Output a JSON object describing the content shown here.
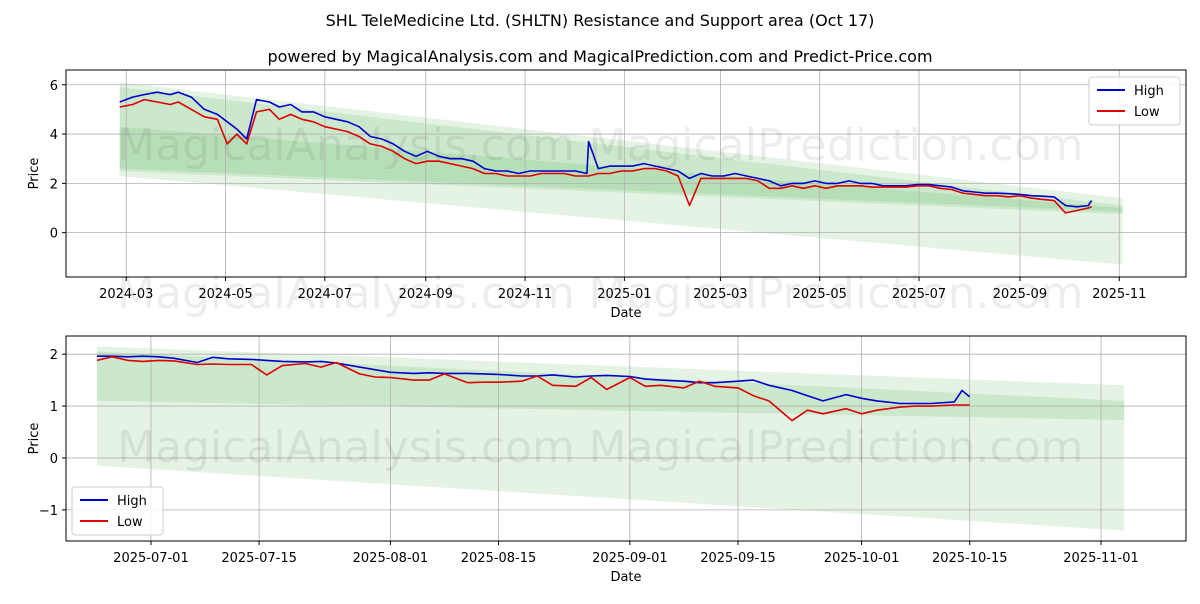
{
  "title": "SHL TeleMedicine Ltd. (SHLTN) Resistance and Support area (Oct 17)",
  "subtitle": "powered by MagicalAnalysis.com and MagicalPrediction.com and Predict-Price.com",
  "watermarks": [
    "MagicalAnalysis.com",
    "MagicalPrediction.com"
  ],
  "colors": {
    "high": "#0000cc",
    "low": "#dd0000",
    "band": "#2ca02c",
    "grid": "#b0b0b0"
  },
  "chart_data": [
    {
      "type": "line",
      "xlabel": "Date",
      "ylabel": "Price",
      "x_ticks": [
        {
          "date": "2024-03-01",
          "label": "2024-03"
        },
        {
          "date": "2024-05-01",
          "label": "2024-05"
        },
        {
          "date": "2024-07-01",
          "label": "2024-07"
        },
        {
          "date": "2024-09-01",
          "label": "2024-09"
        },
        {
          "date": "2024-11-01",
          "label": "2024-11"
        },
        {
          "date": "2025-01-01",
          "label": "2025-01"
        },
        {
          "date": "2025-03-01",
          "label": "2025-03"
        },
        {
          "date": "2025-05-01",
          "label": "2025-05"
        },
        {
          "date": "2025-07-01",
          "label": "2025-07"
        },
        {
          "date": "2025-09-01",
          "label": "2025-09"
        },
        {
          "date": "2025-11-01",
          "label": "2025-11"
        }
      ],
      "y_ticks": [
        0,
        2,
        4,
        6
      ],
      "xlim": [
        "2024-01-24",
        "2025-12-12"
      ],
      "ylim": [
        -1.8,
        6.6
      ],
      "grid": true,
      "legend_position": "top-right",
      "bands": [
        {
          "x": [
            "2024-02-26",
            "2025-11-03"
          ],
          "upper": [
            6.1,
            1.4
          ],
          "lower": [
            2.3,
            -1.3
          ]
        },
        {
          "x": [
            "2024-02-26",
            "2025-11-03"
          ],
          "upper": [
            5.9,
            1.1
          ],
          "lower": [
            2.5,
            0.75
          ]
        },
        {
          "x": [
            "2024-02-26",
            "2025-11-03"
          ],
          "upper": [
            4.3,
            1.0
          ],
          "lower": [
            2.6,
            0.85
          ]
        }
      ],
      "series": [
        {
          "name": "High",
          "color": "#0000cc",
          "x": [
            "2024-02-26",
            "2024-03-05",
            "2024-03-12",
            "2024-03-20",
            "2024-03-28",
            "2024-04-02",
            "2024-04-10",
            "2024-04-18",
            "2024-04-26",
            "2024-05-02",
            "2024-05-08",
            "2024-05-14",
            "2024-05-20",
            "2024-05-28",
            "2024-06-03",
            "2024-06-10",
            "2024-06-17",
            "2024-06-24",
            "2024-07-01",
            "2024-07-08",
            "2024-07-15",
            "2024-07-22",
            "2024-07-29",
            "2024-08-05",
            "2024-08-12",
            "2024-08-19",
            "2024-08-26",
            "2024-09-02",
            "2024-09-09",
            "2024-09-16",
            "2024-09-23",
            "2024-09-30",
            "2024-10-07",
            "2024-10-14",
            "2024-10-21",
            "2024-10-28",
            "2024-11-04",
            "2024-11-11",
            "2024-11-18",
            "2024-11-25",
            "2024-12-02",
            "2024-12-09",
            "2024-12-10",
            "2024-12-16",
            "2024-12-23",
            "2024-12-30",
            "2025-01-06",
            "2025-01-13",
            "2025-01-20",
            "2025-01-27",
            "2025-02-03",
            "2025-02-10",
            "2025-02-17",
            "2025-02-24",
            "2025-03-03",
            "2025-03-10",
            "2025-03-17",
            "2025-03-24",
            "2025-03-31",
            "2025-04-07",
            "2025-04-14",
            "2025-04-21",
            "2025-04-28",
            "2025-05-05",
            "2025-05-12",
            "2025-05-19",
            "2025-05-26",
            "2025-06-02",
            "2025-06-09",
            "2025-06-16",
            "2025-06-23",
            "2025-06-30",
            "2025-07-07",
            "2025-07-14",
            "2025-07-21",
            "2025-07-28",
            "2025-08-04",
            "2025-08-11",
            "2025-08-18",
            "2025-08-25",
            "2025-09-01",
            "2025-09-08",
            "2025-09-15",
            "2025-09-22",
            "2025-09-29",
            "2025-10-06",
            "2025-10-13",
            "2025-10-15"
          ],
          "values": [
            5.3,
            5.5,
            5.6,
            5.7,
            5.6,
            5.7,
            5.5,
            5.0,
            4.8,
            4.5,
            4.2,
            3.8,
            5.4,
            5.3,
            5.1,
            5.2,
            4.9,
            4.9,
            4.7,
            4.6,
            4.5,
            4.3,
            3.9,
            3.8,
            3.6,
            3.3,
            3.1,
            3.3,
            3.1,
            3.0,
            3.0,
            2.9,
            2.6,
            2.5,
            2.5,
            2.4,
            2.5,
            2.5,
            2.5,
            2.5,
            2.5,
            2.4,
            3.7,
            2.6,
            2.7,
            2.7,
            2.7,
            2.8,
            2.7,
            2.6,
            2.5,
            2.2,
            2.4,
            2.3,
            2.3,
            2.4,
            2.3,
            2.2,
            2.1,
            1.9,
            2.0,
            2.0,
            2.1,
            2.0,
            2.0,
            2.1,
            2.0,
            2.0,
            1.9,
            1.9,
            1.9,
            1.95,
            1.95,
            1.9,
            1.85,
            1.7,
            1.65,
            1.6,
            1.6,
            1.58,
            1.55,
            1.5,
            1.48,
            1.45,
            1.1,
            1.05,
            1.1,
            1.3
          ]
        },
        {
          "name": "Low",
          "color": "#dd0000",
          "x": [
            "2024-02-26",
            "2024-03-05",
            "2024-03-12",
            "2024-03-20",
            "2024-03-28",
            "2024-04-02",
            "2024-04-10",
            "2024-04-18",
            "2024-04-26",
            "2024-05-02",
            "2024-05-08",
            "2024-05-14",
            "2024-05-20",
            "2024-05-28",
            "2024-06-03",
            "2024-06-10",
            "2024-06-17",
            "2024-06-24",
            "2024-07-01",
            "2024-07-08",
            "2024-07-15",
            "2024-07-22",
            "2024-07-29",
            "2024-08-05",
            "2024-08-12",
            "2024-08-19",
            "2024-08-26",
            "2024-09-02",
            "2024-09-09",
            "2024-09-16",
            "2024-09-23",
            "2024-09-30",
            "2024-10-07",
            "2024-10-14",
            "2024-10-21",
            "2024-10-28",
            "2024-11-04",
            "2024-11-11",
            "2024-11-18",
            "2024-11-25",
            "2024-12-02",
            "2024-12-09",
            "2024-12-10",
            "2024-12-16",
            "2024-12-23",
            "2024-12-30",
            "2025-01-06",
            "2025-01-13",
            "2025-01-20",
            "2025-01-27",
            "2025-02-03",
            "2025-02-10",
            "2025-02-17",
            "2025-02-24",
            "2025-03-03",
            "2025-03-10",
            "2025-03-17",
            "2025-03-24",
            "2025-03-31",
            "2025-04-07",
            "2025-04-14",
            "2025-04-21",
            "2025-04-28",
            "2025-05-05",
            "2025-05-12",
            "2025-05-19",
            "2025-05-26",
            "2025-06-02",
            "2025-06-09",
            "2025-06-16",
            "2025-06-23",
            "2025-06-30",
            "2025-07-07",
            "2025-07-14",
            "2025-07-21",
            "2025-07-28",
            "2025-08-04",
            "2025-08-11",
            "2025-08-18",
            "2025-08-25",
            "2025-09-01",
            "2025-09-08",
            "2025-09-15",
            "2025-09-22",
            "2025-09-29",
            "2025-10-06",
            "2025-10-13",
            "2025-10-15"
          ],
          "values": [
            5.1,
            5.2,
            5.4,
            5.3,
            5.2,
            5.3,
            5.0,
            4.7,
            4.6,
            3.6,
            4.0,
            3.6,
            4.9,
            5.0,
            4.6,
            4.8,
            4.6,
            4.5,
            4.3,
            4.2,
            4.1,
            3.9,
            3.6,
            3.5,
            3.3,
            3.0,
            2.8,
            2.9,
            2.9,
            2.8,
            2.7,
            2.6,
            2.4,
            2.4,
            2.3,
            2.3,
            2.3,
            2.4,
            2.4,
            2.4,
            2.3,
            2.3,
            2.3,
            2.4,
            2.4,
            2.5,
            2.5,
            2.6,
            2.6,
            2.5,
            2.3,
            1.1,
            2.2,
            2.2,
            2.2,
            2.2,
            2.2,
            2.1,
            1.8,
            1.8,
            1.9,
            1.8,
            1.9,
            1.8,
            1.9,
            1.9,
            1.9,
            1.85,
            1.85,
            1.85,
            1.85,
            1.9,
            1.9,
            1.8,
            1.75,
            1.6,
            1.55,
            1.5,
            1.5,
            1.45,
            1.5,
            1.4,
            1.35,
            1.3,
            0.8,
            0.9,
            1.0,
            1.05
          ]
        }
      ]
    },
    {
      "type": "line",
      "xlabel": "Date",
      "ylabel": "Price",
      "x_ticks": [
        {
          "date": "2025-07-01",
          "label": "2025-07-01"
        },
        {
          "date": "2025-07-15",
          "label": "2025-07-15"
        },
        {
          "date": "2025-08-01",
          "label": "2025-08-01"
        },
        {
          "date": "2025-08-15",
          "label": "2025-08-15"
        },
        {
          "date": "2025-09-01",
          "label": "2025-09-01"
        },
        {
          "date": "2025-09-15",
          "label": "2025-09-15"
        },
        {
          "date": "2025-10-01",
          "label": "2025-10-01"
        },
        {
          "date": "2025-10-15",
          "label": "2025-10-15"
        },
        {
          "date": "2025-11-01",
          "label": "2025-11-01"
        }
      ],
      "y_ticks": [
        -1,
        0,
        1,
        2
      ],
      "xlim": [
        "2025-06-20",
        "2025-11-12"
      ],
      "ylim": [
        -1.6,
        2.35
      ],
      "grid": true,
      "legend_position": "bottom-left",
      "bands": [
        {
          "x": [
            "2025-06-24",
            "2025-11-04"
          ],
          "upper": [
            2.15,
            1.4
          ],
          "lower": [
            -0.15,
            -1.4
          ]
        },
        {
          "x": [
            "2025-06-24",
            "2025-11-04"
          ],
          "upper": [
            2.05,
            1.1
          ],
          "lower": [
            1.1,
            0.73
          ]
        }
      ],
      "series": [
        {
          "name": "High",
          "color": "#0000cc",
          "x": [
            "2025-06-24",
            "2025-06-26",
            "2025-06-28",
            "2025-06-30",
            "2025-07-02",
            "2025-07-04",
            "2025-07-07",
            "2025-07-09",
            "2025-07-11",
            "2025-07-14",
            "2025-07-16",
            "2025-07-18",
            "2025-07-21",
            "2025-07-23",
            "2025-07-25",
            "2025-07-28",
            "2025-07-30",
            "2025-08-01",
            "2025-08-04",
            "2025-08-06",
            "2025-08-08",
            "2025-08-11",
            "2025-08-13",
            "2025-08-15",
            "2025-08-18",
            "2025-08-20",
            "2025-08-22",
            "2025-08-25",
            "2025-08-27",
            "2025-08-29",
            "2025-09-01",
            "2025-09-03",
            "2025-09-05",
            "2025-09-08",
            "2025-09-10",
            "2025-09-12",
            "2025-09-15",
            "2025-09-17",
            "2025-09-19",
            "2025-09-22",
            "2025-09-24",
            "2025-09-26",
            "2025-09-29",
            "2025-10-01",
            "2025-10-03",
            "2025-10-06",
            "2025-10-08",
            "2025-10-10",
            "2025-10-13",
            "2025-10-14",
            "2025-10-15"
          ],
          "values": [
            1.96,
            1.96,
            1.95,
            1.96,
            1.95,
            1.92,
            1.84,
            1.94,
            1.91,
            1.9,
            1.88,
            1.86,
            1.85,
            1.86,
            1.83,
            1.75,
            1.7,
            1.65,
            1.63,
            1.64,
            1.63,
            1.63,
            1.62,
            1.61,
            1.58,
            1.58,
            1.6,
            1.56,
            1.58,
            1.59,
            1.57,
            1.52,
            1.5,
            1.48,
            1.45,
            1.45,
            1.48,
            1.5,
            1.4,
            1.3,
            1.2,
            1.1,
            1.22,
            1.15,
            1.1,
            1.05,
            1.05,
            1.05,
            1.08,
            1.3,
            1.18
          ]
        },
        {
          "name": "Low",
          "color": "#dd0000",
          "x": [
            "2025-06-24",
            "2025-06-26",
            "2025-06-28",
            "2025-06-30",
            "2025-07-02",
            "2025-07-04",
            "2025-07-07",
            "2025-07-09",
            "2025-07-11",
            "2025-07-14",
            "2025-07-16",
            "2025-07-18",
            "2025-07-21",
            "2025-07-23",
            "2025-07-25",
            "2025-07-28",
            "2025-07-30",
            "2025-08-01",
            "2025-08-04",
            "2025-08-06",
            "2025-08-08",
            "2025-08-11",
            "2025-08-13",
            "2025-08-15",
            "2025-08-18",
            "2025-08-20",
            "2025-08-22",
            "2025-08-25",
            "2025-08-27",
            "2025-08-29",
            "2025-09-01",
            "2025-09-03",
            "2025-09-05",
            "2025-09-08",
            "2025-09-10",
            "2025-09-12",
            "2025-09-15",
            "2025-09-17",
            "2025-09-19",
            "2025-09-22",
            "2025-09-24",
            "2025-09-26",
            "2025-09-29",
            "2025-10-01",
            "2025-10-03",
            "2025-10-06",
            "2025-10-08",
            "2025-10-10",
            "2025-10-13",
            "2025-10-14",
            "2025-10-15"
          ],
          "values": [
            1.88,
            1.95,
            1.88,
            1.86,
            1.88,
            1.87,
            1.8,
            1.81,
            1.8,
            1.8,
            1.6,
            1.78,
            1.82,
            1.75,
            1.84,
            1.62,
            1.56,
            1.55,
            1.5,
            1.5,
            1.62,
            1.45,
            1.46,
            1.46,
            1.48,
            1.58,
            1.4,
            1.38,
            1.55,
            1.32,
            1.55,
            1.38,
            1.4,
            1.35,
            1.48,
            1.38,
            1.35,
            1.2,
            1.1,
            0.72,
            0.92,
            0.85,
            0.95,
            0.85,
            0.92,
            0.98,
            1.0,
            1.0,
            1.02,
            1.02,
            1.02
          ]
        }
      ]
    }
  ]
}
